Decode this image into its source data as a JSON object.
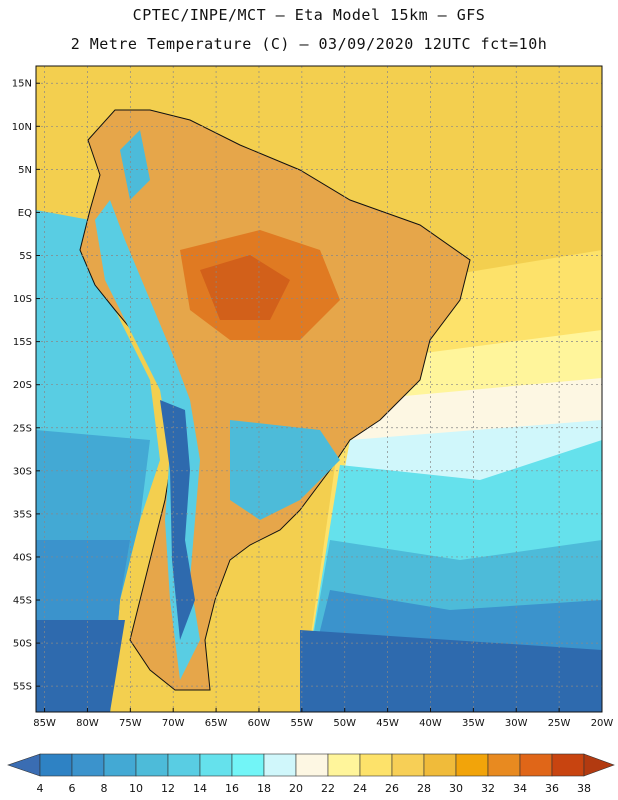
{
  "header": {
    "line1": "CPTEC/INPE/MCT –  Eta Model 15km – GFS",
    "line2": "2 Metre Temperature (C) – 03/09/2020 12UTC fct=10h"
  },
  "map": {
    "lat_range": [
      -58,
      17
    ],
    "lon_range": [
      -86,
      -20
    ],
    "lat_labels": [
      "15N",
      "10N",
      "5N",
      "EQ",
      "5S",
      "10S",
      "15S",
      "20S",
      "25S",
      "30S",
      "35S",
      "40S",
      "45S",
      "50S",
      "55S"
    ],
    "lat_values": [
      15,
      10,
      5,
      0,
      -5,
      -10,
      -15,
      -20,
      -25,
      -30,
      -35,
      -40,
      -45,
      -50,
      -55
    ],
    "lon_labels": [
      "85W",
      "80W",
      "75W",
      "70W",
      "65W",
      "60W",
      "55W",
      "50W",
      "45W",
      "40W",
      "35W",
      "30W",
      "25W",
      "20W"
    ],
    "lon_values": [
      -85,
      -80,
      -75,
      -70,
      -65,
      -60,
      -55,
      -50,
      -45,
      -40,
      -35,
      -30,
      -25,
      -20
    ],
    "land_color": "#e6a64a",
    "ocean_color": "#5ad2e0"
  },
  "colorbar": {
    "labels": [
      "4",
      "6",
      "8",
      "10",
      "12",
      "14",
      "16",
      "18",
      "20",
      "22",
      "24",
      "26",
      "28",
      "30",
      "32",
      "34",
      "36",
      "38"
    ],
    "colors": [
      "#3a6db3",
      "#2e82c4",
      "#3b93cc",
      "#43a9d4",
      "#4dbbd9",
      "#59cde3",
      "#65e1ec",
      "#72f5f7",
      "#d0f7fb",
      "#fdf7e3",
      "#fff59b",
      "#fde26a",
      "#f7cf56",
      "#f0bb3a",
      "#f2a40a",
      "#e88a20",
      "#e06618",
      "#c84410",
      "#b23a10"
    ]
  }
}
